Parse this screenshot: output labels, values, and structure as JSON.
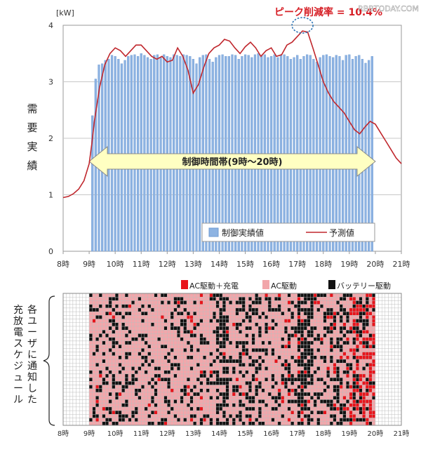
{
  "watermark": "RBBTODAY.COM",
  "chart_data": [
    {
      "type": "bar",
      "title": "ピーク削減率 = 10.4%",
      "unit_label": "[kW]",
      "ylabel": "需要実績",
      "ylim": [
        0,
        4
      ],
      "yticks": [
        "0",
        "1",
        "2",
        "3",
        "4"
      ],
      "grid": true,
      "xlim": [
        8,
        21
      ],
      "xticks": [
        "8時",
        "9時",
        "10時",
        "11時",
        "12時",
        "13時",
        "14時",
        "15時",
        "16時",
        "17時",
        "18時",
        "19時",
        "20時",
        "21時"
      ],
      "band_label": "制御時間帯(9時～20時)",
      "band_range": [
        9,
        20
      ],
      "legend_position": "bottom-right",
      "colors": {
        "bars": "#8db3e2",
        "bars_edge": "#6f9bd3",
        "line": "#c0272d",
        "band": "#ffffc2",
        "peak_marker": "#2e75b6"
      },
      "series": [
        {
          "name": "制御実績値",
          "kind": "bar",
          "x": [
            9.125,
            9.25,
            9.375,
            9.5,
            9.625,
            9.75,
            9.875,
            10.0,
            10.125,
            10.25,
            10.375,
            10.5,
            10.625,
            10.75,
            10.875,
            11.0,
            11.125,
            11.25,
            11.375,
            11.5,
            11.625,
            11.75,
            11.875,
            12.0,
            12.125,
            12.25,
            12.375,
            12.5,
            12.625,
            12.75,
            12.875,
            13.0,
            13.125,
            13.25,
            13.375,
            13.5,
            13.625,
            13.75,
            13.875,
            14.0,
            14.125,
            14.25,
            14.375,
            14.5,
            14.625,
            14.75,
            14.875,
            15.0,
            15.125,
            15.25,
            15.375,
            15.5,
            15.625,
            15.75,
            15.875,
            16.0,
            16.125,
            16.25,
            16.375,
            16.5,
            16.625,
            16.75,
            16.875,
            17.0,
            17.125,
            17.25,
            17.375,
            17.5,
            17.625,
            17.75,
            17.875,
            18.0,
            18.125,
            18.25,
            18.375,
            18.5,
            18.625,
            18.75,
            18.875,
            19.0,
            19.125,
            19.25,
            19.375,
            19.5,
            19.625,
            19.75,
            19.875
          ],
          "values": [
            2.4,
            3.05,
            3.3,
            3.32,
            3.38,
            3.4,
            3.47,
            3.45,
            3.4,
            3.32,
            3.38,
            3.45,
            3.47,
            3.48,
            3.45,
            3.5,
            3.47,
            3.43,
            3.4,
            3.47,
            3.48,
            3.43,
            3.48,
            3.45,
            3.43,
            3.48,
            3.47,
            3.45,
            3.48,
            3.47,
            3.45,
            3.4,
            3.32,
            3.43,
            3.47,
            3.48,
            3.4,
            3.35,
            3.43,
            3.47,
            3.48,
            3.45,
            3.45,
            3.48,
            3.47,
            3.4,
            3.45,
            3.48,
            3.47,
            3.43,
            3.48,
            3.5,
            3.47,
            3.48,
            3.43,
            3.45,
            3.48,
            3.43,
            3.47,
            3.48,
            3.45,
            3.4,
            3.43,
            3.47,
            3.4,
            3.45,
            3.48,
            3.47,
            3.4,
            3.35,
            3.43,
            3.47,
            3.48,
            3.45,
            3.43,
            3.47,
            3.45,
            3.38,
            3.47,
            3.48,
            3.4,
            3.45,
            3.47,
            3.4,
            3.33,
            3.38,
            3.45
          ]
        },
        {
          "name": "予測値",
          "kind": "line",
          "x": [
            8.0,
            8.2,
            8.4,
            8.6,
            8.8,
            9.0,
            9.1,
            9.2,
            9.4,
            9.6,
            9.8,
            10.0,
            10.2,
            10.4,
            10.6,
            10.8,
            11.0,
            11.2,
            11.4,
            11.6,
            11.8,
            12.0,
            12.2,
            12.4,
            12.6,
            12.8,
            13.0,
            13.2,
            13.4,
            13.6,
            13.8,
            14.0,
            14.2,
            14.4,
            14.6,
            14.8,
            15.0,
            15.2,
            15.4,
            15.6,
            15.8,
            16.0,
            16.2,
            16.4,
            16.6,
            16.8,
            17.0,
            17.2,
            17.4,
            17.6,
            17.8,
            18.0,
            18.2,
            18.4,
            18.6,
            18.8,
            19.0,
            19.2,
            19.4,
            19.6,
            19.8,
            20.0,
            20.2,
            20.4,
            20.6,
            20.8,
            21.0
          ],
          "y": [
            0.95,
            0.97,
            1.02,
            1.1,
            1.25,
            1.55,
            1.9,
            2.3,
            2.9,
            3.3,
            3.5,
            3.6,
            3.55,
            3.45,
            3.55,
            3.65,
            3.65,
            3.55,
            3.45,
            3.4,
            3.45,
            3.35,
            3.38,
            3.6,
            3.45,
            3.2,
            2.8,
            2.95,
            3.25,
            3.5,
            3.6,
            3.65,
            3.75,
            3.72,
            3.6,
            3.5,
            3.62,
            3.7,
            3.6,
            3.45,
            3.55,
            3.6,
            3.45,
            3.48,
            3.65,
            3.7,
            3.8,
            3.9,
            3.88,
            3.6,
            3.3,
            3.0,
            2.8,
            2.65,
            2.55,
            2.45,
            2.3,
            2.15,
            2.08,
            2.2,
            2.3,
            2.25,
            2.1,
            1.95,
            1.8,
            1.65,
            1.55
          ]
        }
      ]
    },
    {
      "type": "heatmap",
      "ylabel": "各ユーザに通知した充放電スケジュール",
      "xlim": [
        8,
        21
      ],
      "xticks": [
        "8時",
        "9時",
        "10時",
        "11時",
        "12時",
        "13時",
        "14時",
        "15時",
        "16時",
        "17時",
        "18時",
        "19時",
        "20時",
        "21時"
      ],
      "legend": [
        {
          "name": "AC駆動＋充電",
          "color": "#e8141b"
        },
        {
          "name": "AC駆動",
          "color": "#f2a6aa"
        },
        {
          "name": "バッテリー駆動",
          "color": "#111111"
        }
      ],
      "empty_color": "#ffffff",
      "slot_hours": 0.125,
      "schedule_start_hour": 9,
      "schedule_end_hour": 20,
      "rows": 36
    }
  ]
}
